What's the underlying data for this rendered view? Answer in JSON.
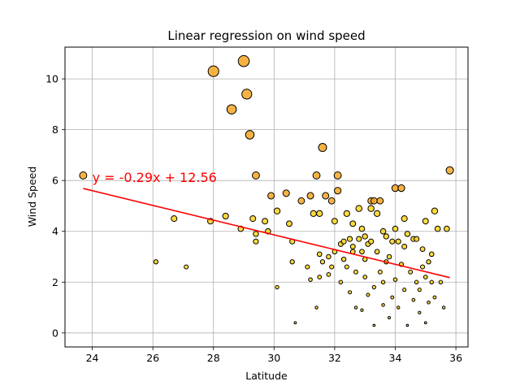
{
  "chart_data": {
    "type": "scatter",
    "title": "Linear regression on wind speed",
    "xlabel": "Latitude",
    "ylabel": "Wind Speed",
    "xlim": [
      23.1,
      36.4
    ],
    "ylim": [
      -0.55,
      11.25
    ],
    "x_ticks": [
      24,
      26,
      28,
      30,
      32,
      34,
      36
    ],
    "y_ticks": [
      0,
      2,
      4,
      6,
      8,
      10
    ],
    "grid": true,
    "colors": {
      "marker_fill": "#ffd21a",
      "marker_fill_large": "#f5a623",
      "marker_edge": "#000000",
      "regression_line": "#ff0000",
      "grid": "#b0b0b0"
    },
    "regression": {
      "slope": -0.29,
      "intercept": 12.56,
      "x_range": [
        23.7,
        35.8
      ]
    },
    "annotation": {
      "text": "y = -0.29x + 12.56",
      "x": 24.0,
      "y": 6.1,
      "color": "#ff0000"
    },
    "points": [
      [
        23.7,
        6.2
      ],
      [
        26.1,
        2.8
      ],
      [
        26.7,
        4.5
      ],
      [
        27.1,
        2.6
      ],
      [
        27.9,
        4.4
      ],
      [
        28.0,
        10.3
      ],
      [
        28.4,
        4.6
      ],
      [
        28.6,
        8.8
      ],
      [
        28.9,
        4.1
      ],
      [
        29.0,
        10.7
      ],
      [
        29.1,
        9.4
      ],
      [
        29.2,
        7.8
      ],
      [
        29.3,
        4.5
      ],
      [
        29.4,
        6.2
      ],
      [
        29.4,
        3.9
      ],
      [
        29.4,
        3.6
      ],
      [
        29.7,
        4.4
      ],
      [
        29.8,
        4.0
      ],
      [
        29.9,
        5.4
      ],
      [
        30.1,
        1.8
      ],
      [
        30.1,
        4.8
      ],
      [
        30.4,
        5.5
      ],
      [
        30.5,
        4.3
      ],
      [
        30.6,
        3.6
      ],
      [
        30.6,
        2.8
      ],
      [
        30.7,
        0.4
      ],
      [
        30.9,
        5.2
      ],
      [
        31.1,
        2.6
      ],
      [
        31.2,
        2.1
      ],
      [
        31.2,
        5.4
      ],
      [
        31.3,
        4.7
      ],
      [
        31.4,
        1.0
      ],
      [
        31.4,
        6.2
      ],
      [
        31.5,
        4.7
      ],
      [
        31.5,
        3.1
      ],
      [
        31.6,
        7.3
      ],
      [
        31.6,
        2.8
      ],
      [
        31.7,
        5.4
      ],
      [
        31.8,
        2.3
      ],
      [
        31.9,
        5.2
      ],
      [
        31.9,
        2.6
      ],
      [
        32.0,
        4.4
      ],
      [
        32.0,
        3.2
      ],
      [
        32.1,
        6.2
      ],
      [
        32.1,
        5.6
      ],
      [
        32.2,
        2.0
      ],
      [
        32.2,
        3.5
      ],
      [
        32.3,
        2.9
      ],
      [
        32.4,
        4.7
      ],
      [
        32.4,
        2.6
      ],
      [
        32.5,
        3.7
      ],
      [
        32.5,
        1.6
      ],
      [
        32.6,
        4.3
      ],
      [
        32.6,
        3.2
      ],
      [
        32.7,
        1.0
      ],
      [
        32.7,
        2.4
      ],
      [
        32.8,
        3.7
      ],
      [
        32.8,
        4.9
      ],
      [
        32.9,
        3.2
      ],
      [
        32.9,
        0.9
      ],
      [
        33.0,
        3.8
      ],
      [
        33.0,
        2.2
      ],
      [
        33.1,
        1.5
      ],
      [
        33.1,
        3.5
      ],
      [
        33.2,
        4.9
      ],
      [
        33.2,
        5.2
      ],
      [
        33.2,
        3.6
      ],
      [
        33.3,
        0.3
      ],
      [
        33.3,
        1.8
      ],
      [
        33.3,
        5.2
      ],
      [
        33.4,
        4.7
      ],
      [
        33.4,
        3.2
      ],
      [
        33.5,
        2.4
      ],
      [
        33.5,
        5.2
      ],
      [
        33.6,
        4.0
      ],
      [
        33.6,
        1.1
      ],
      [
        33.7,
        2.8
      ],
      [
        33.7,
        3.8
      ],
      [
        33.8,
        0.6
      ],
      [
        33.8,
        3.0
      ],
      [
        33.9,
        3.6
      ],
      [
        33.9,
        1.4
      ],
      [
        34.0,
        4.1
      ],
      [
        34.0,
        2.1
      ],
      [
        34.0,
        5.7
      ],
      [
        34.1,
        3.6
      ],
      [
        34.1,
        1.0
      ],
      [
        34.2,
        5.7
      ],
      [
        34.2,
        2.7
      ],
      [
        34.3,
        4.5
      ],
      [
        34.3,
        3.4
      ],
      [
        34.3,
        1.7
      ],
      [
        34.4,
        3.9
      ],
      [
        34.4,
        0.3
      ],
      [
        34.5,
        2.4
      ],
      [
        34.6,
        3.7
      ],
      [
        34.6,
        1.3
      ],
      [
        34.7,
        3.7
      ],
      [
        34.7,
        2.0
      ],
      [
        34.8,
        0.8
      ],
      [
        34.9,
        2.6
      ],
      [
        34.9,
        3.3
      ],
      [
        35.0,
        4.4
      ],
      [
        35.0,
        2.2
      ],
      [
        35.0,
        0.4
      ],
      [
        35.1,
        2.8
      ],
      [
        35.1,
        1.2
      ],
      [
        35.2,
        3.1
      ],
      [
        35.2,
        2.0
      ],
      [
        35.3,
        4.8
      ],
      [
        35.3,
        1.4
      ],
      [
        35.4,
        4.1
      ],
      [
        35.5,
        2.0
      ],
      [
        35.6,
        1.0
      ],
      [
        35.7,
        4.1
      ],
      [
        35.8,
        6.4
      ],
      [
        32.3,
        3.6
      ],
      [
        33.0,
        2.9
      ],
      [
        31.8,
        3.0
      ],
      [
        32.9,
        4.1
      ],
      [
        34.8,
        1.7
      ],
      [
        33.6,
        2.0
      ],
      [
        32.6,
        3.4
      ],
      [
        31.5,
        2.2
      ]
    ]
  }
}
